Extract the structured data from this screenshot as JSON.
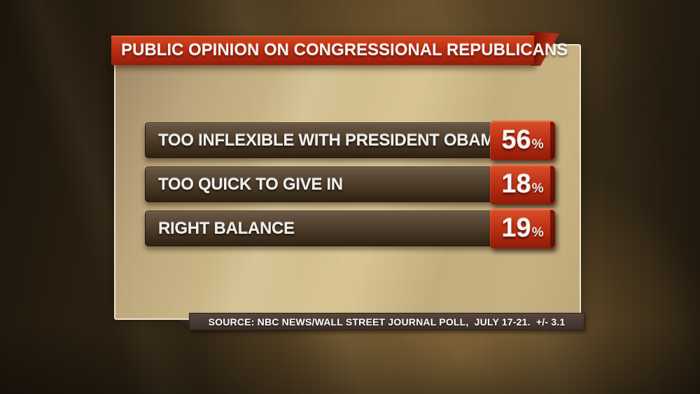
{
  "header": {
    "title": "PUBLIC OPINION ON CONGRESSIONAL REPUBLICANS"
  },
  "rows": [
    {
      "label": "TOO INFLEXIBLE WITH PRESIDENT OBAMA",
      "value": "56",
      "unit": "%"
    },
    {
      "label": "TOO QUICK TO GIVE IN",
      "value": "18",
      "unit": "%"
    },
    {
      "label": "RIGHT BALANCE",
      "value": "19",
      "unit": "%"
    }
  ],
  "footer": {
    "source": "SOURCE: NBC NEWS/WALL STREET JOURNAL POLL,  JULY 17-21.  +/- 3.1"
  },
  "colors": {
    "banner_red": "#bd2f13",
    "value_box_red": "#c23517",
    "bar_brown": "#4a3a2a",
    "panel_tan": "#d2bd8c",
    "background_brown": "#2f2413",
    "text_silver": "#f0efec",
    "source_bar_brown": "#483932"
  },
  "chart_data": {
    "type": "bar",
    "title": "PUBLIC OPINION ON CONGRESSIONAL REPUBLICANS",
    "categories": [
      "TOO INFLEXIBLE WITH PRESIDENT OBAMA",
      "TOO QUICK TO GIVE IN",
      "RIGHT BALANCE"
    ],
    "values": [
      56,
      18,
      19
    ],
    "unit": "%",
    "value_labels": [
      "56%",
      "18%",
      "19%"
    ],
    "xlabel": "",
    "ylabel": "",
    "legend": false,
    "orientation": "horizontal-rows",
    "source": "SOURCE: NBC NEWS/WALL STREET JOURNAL POLL, JULY 17-21. +/- 3.1"
  }
}
